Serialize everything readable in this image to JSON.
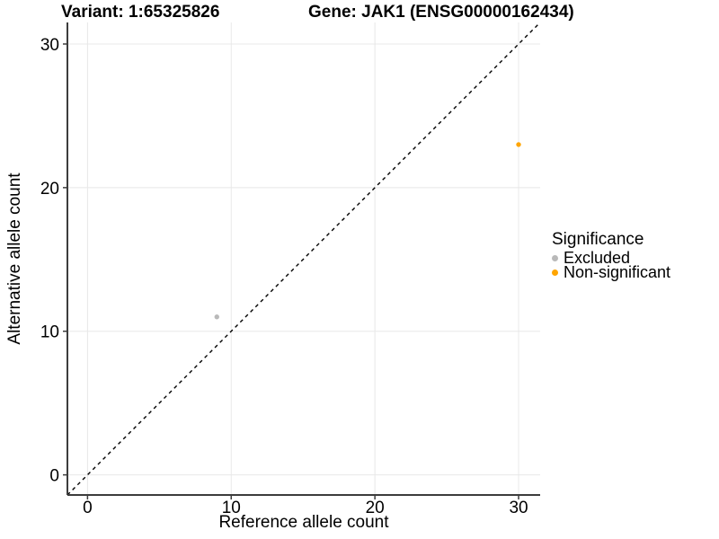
{
  "chart_data": {
    "type": "scatter",
    "titles": {
      "left": "Variant: 1:65325826",
      "right": "Gene: JAK1 (ENSG00000162434)"
    },
    "xlabel": "Reference allele count",
    "ylabel": "Alternative allele count",
    "xlim": [
      -1.4,
      31.5
    ],
    "ylim": [
      -1.4,
      31.5
    ],
    "xticks": [
      0,
      10,
      20,
      30
    ],
    "yticks": [
      0,
      10,
      20,
      30
    ],
    "grid": "major-only",
    "legend": {
      "title": "Significance",
      "position": "right"
    },
    "identity_line": {
      "style": "dashed",
      "color": "#000000",
      "from": [
        -1.4,
        -1.4
      ],
      "to": [
        31.5,
        31.5
      ]
    },
    "series": [
      {
        "name": "Excluded",
        "color": "#b9b9b9",
        "points": [
          [
            9,
            11
          ]
        ]
      },
      {
        "name": "Non-significant",
        "color": "#FFA500",
        "points": [
          [
            30,
            23
          ]
        ]
      }
    ]
  },
  "colors": {
    "background": "#ffffff",
    "axis_line": "#3c3c3c",
    "tick_mark": "#3c3c3c",
    "gridline": "#e8e8e8",
    "text": "#000000"
  }
}
